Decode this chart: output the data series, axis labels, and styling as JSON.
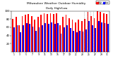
{
  "title": "Milwaukee Weather Outdoor Humidity",
  "subtitle": "Daily High/Low",
  "bar_width": 0.4,
  "background_color": "#ffffff",
  "high_color": "#ff0000",
  "low_color": "#0000ff",
  "legend_high": "High",
  "legend_low": "Low",
  "ylim": [
    0,
    100
  ],
  "ylabel_ticks": [
    20,
    40,
    60,
    80,
    100
  ],
  "highs": [
    80,
    85,
    65,
    88,
    90,
    92,
    88,
    78,
    85,
    90,
    95,
    92,
    95,
    92,
    95,
    65,
    85,
    90,
    82,
    78,
    72,
    78,
    75,
    80,
    98,
    88,
    82,
    100,
    98,
    95,
    92
  ],
  "lows": [
    60,
    65,
    48,
    65,
    70,
    68,
    62,
    52,
    60,
    65,
    70,
    68,
    72,
    68,
    70,
    45,
    60,
    65,
    58,
    52,
    48,
    52,
    50,
    55,
    75,
    65,
    58,
    75,
    72,
    70,
    68
  ],
  "dashed_lines": [
    22.5,
    23.5,
    24.5,
    25.5
  ],
  "x_tick_positions": [
    0,
    2,
    4,
    6,
    8,
    10,
    12,
    14,
    16,
    18,
    20,
    22,
    24,
    26,
    28,
    30
  ],
  "x_tick_labels": [
    "1",
    "3",
    "5",
    "7",
    "9",
    "11",
    "13",
    "15",
    "17",
    "19",
    "21",
    "23",
    "25",
    "27",
    "29",
    "31"
  ]
}
